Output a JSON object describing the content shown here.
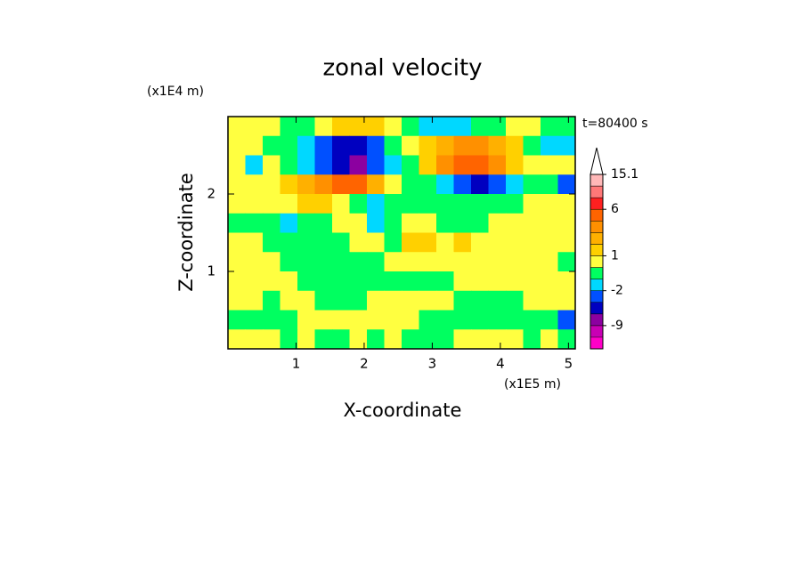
{
  "chart_data": {
    "type": "contour",
    "title": "zonal velocity",
    "x_label": "X-coordinate",
    "y_label": "Z-coordinate",
    "x_unit": "(x1E5 m)",
    "y_unit": "(x1E4 m)",
    "annotation": "t=80400 s",
    "xlim": [
      0,
      5.1
    ],
    "ylim": [
      0,
      3
    ],
    "xticks": [
      1,
      2,
      3,
      4,
      5
    ],
    "yticks": [
      1,
      2
    ],
    "levels": [
      -12,
      -9,
      -6,
      -4,
      -2,
      -1,
      0,
      1,
      2,
      3,
      4,
      6,
      9,
      12,
      15.1
    ],
    "colors": [
      "#ff00c8",
      "#c800b4",
      "#8c00a0",
      "#0000c0",
      "#0050ff",
      "#00d8ff",
      "#00ff60",
      "#ffff40",
      "#ffd000",
      "#ffb000",
      "#ff9000",
      "#ff6400",
      "#ff2020",
      "#ff7878",
      "#ffb8b8",
      "#ffffff"
    ],
    "colorbar_ticks": [
      -9,
      -2,
      1,
      6,
      15.1
    ],
    "values": [
      [
        0.5,
        0.5,
        0.5,
        -0.5,
        -0.5,
        0.5,
        1.5,
        1.5,
        1.5,
        0.5,
        -0.5,
        -1.5,
        -1.5,
        -1.5,
        -0.5,
        -0.5,
        0.5,
        0.5,
        -0.5,
        -0.5
      ],
      [
        0.5,
        0.5,
        -0.5,
        -0.5,
        -1.5,
        -3,
        -5,
        -5,
        -3,
        -0.5,
        0.5,
        1.5,
        2.5,
        3.5,
        3.5,
        2.5,
        1.5,
        -0.5,
        -1.5,
        -1.5
      ],
      [
        0.5,
        -1.5,
        0.5,
        -0.5,
        -1.5,
        -3,
        -5,
        -7,
        -3,
        -1.5,
        -0.5,
        1.5,
        3.5,
        4.5,
        5,
        3.5,
        1.5,
        0.5,
        0.5,
        0.5
      ],
      [
        0.5,
        0.5,
        0.5,
        1.5,
        2.5,
        3.5,
        5,
        5,
        2.5,
        0.5,
        -0.5,
        -0.5,
        -1.5,
        -3,
        -5,
        -3,
        -1.5,
        -0.5,
        -0.5,
        -3
      ],
      [
        0.5,
        0.5,
        0.5,
        0.5,
        1.5,
        1.5,
        0.5,
        -0.5,
        -1.5,
        -0.5,
        -0.5,
        -0.5,
        -0.5,
        -0.5,
        -0.5,
        -0.5,
        -0.5,
        0.5,
        0.5,
        0.5
      ],
      [
        -0.5,
        -0.5,
        -0.5,
        -1.5,
        -0.5,
        -0.5,
        0.5,
        0.5,
        -1.5,
        -0.5,
        0.5,
        0.5,
        -0.5,
        -0.5,
        -0.5,
        0.5,
        0.5,
        0.5,
        0.5,
        0.5
      ],
      [
        0.5,
        0.5,
        -0.5,
        -0.5,
        -0.5,
        -0.5,
        -0.5,
        0.5,
        0.5,
        -0.5,
        1.5,
        1.5,
        0.5,
        1.5,
        0.5,
        0.5,
        0.5,
        0.5,
        0.5,
        0.5
      ],
      [
        0.5,
        0.5,
        0.5,
        -0.5,
        -0.5,
        -0.5,
        -0.5,
        -0.5,
        -0.5,
        0.5,
        0.5,
        0.5,
        0.5,
        0.5,
        0.5,
        0.5,
        0.5,
        0.5,
        0.5,
        -0.5
      ],
      [
        0.5,
        0.5,
        0.5,
        0.5,
        -0.5,
        -0.5,
        -0.5,
        -0.5,
        -0.5,
        -0.5,
        -0.5,
        -0.5,
        -0.5,
        0.5,
        0.5,
        0.5,
        0.5,
        0.5,
        0.5,
        0.5
      ],
      [
        0.5,
        0.5,
        -0.5,
        0.5,
        0.5,
        -0.5,
        -0.5,
        -0.5,
        0.5,
        0.5,
        0.5,
        0.5,
        0.5,
        -0.5,
        -0.5,
        -0.5,
        -0.5,
        0.5,
        0.5,
        0.5
      ],
      [
        -0.5,
        -0.5,
        -0.5,
        -0.5,
        0.5,
        0.5,
        0.5,
        0.5,
        0.5,
        0.5,
        0.5,
        -0.5,
        -0.5,
        -0.5,
        -0.5,
        -0.5,
        -0.5,
        -0.5,
        -0.5,
        -3
      ],
      [
        0.5,
        0.5,
        0.5,
        -0.5,
        0.5,
        -0.5,
        -0.5,
        0.5,
        -0.5,
        0.5,
        -0.5,
        -0.5,
        -0.5,
        0.5,
        0.5,
        0.5,
        0.5,
        -0.5,
        0.5,
        -0.5
      ]
    ]
  }
}
